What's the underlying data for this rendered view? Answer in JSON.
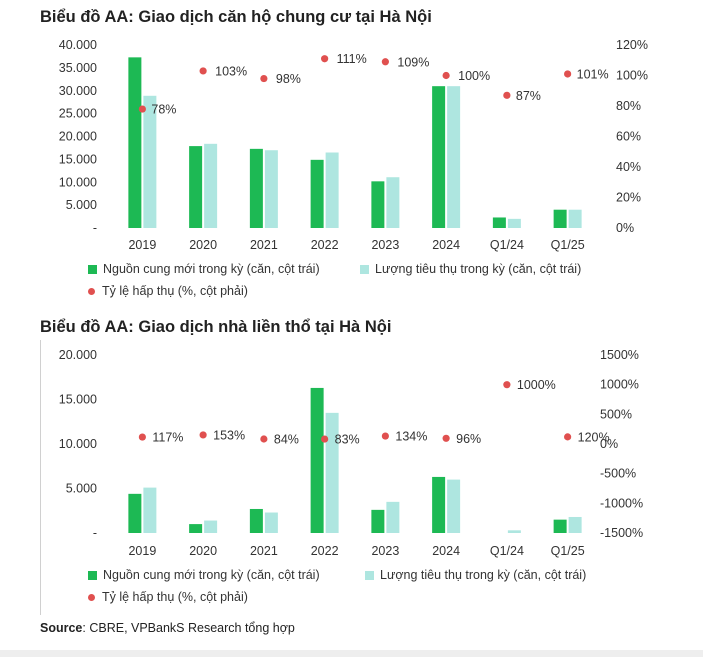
{
  "colors": {
    "supply": "#1db954",
    "sales": "#aee6e0",
    "rate": "#e0504f"
  },
  "legend": {
    "supply": "Nguồn cung mới trong kỳ (căn, cột trái)",
    "sales": "Lượng tiêu thụ trong kỳ (căn, cột trái)",
    "rate": "Tỷ lệ hấp thụ (%, cột phải)"
  },
  "source": {
    "label": "Source",
    "text": ": CBRE, VPBankS Research tổng hợp"
  },
  "chart_data": [
    {
      "type": "bar",
      "title": "Biểu đồ AA: Giao dịch căn hộ chung cư tại Hà Nội",
      "categories": [
        "2019",
        "2020",
        "2021",
        "2022",
        "2023",
        "2024",
        "Q1/24",
        "Q1/25"
      ],
      "series": [
        {
          "name": "Nguồn cung mới trong kỳ (căn, cột trái)",
          "values": [
            37300,
            17900,
            17300,
            14900,
            10200,
            31000,
            2300,
            4000
          ]
        },
        {
          "name": "Lượng tiêu thụ trong kỳ (căn, cột trái)",
          "values": [
            28900,
            18400,
            17000,
            16500,
            11100,
            31000,
            2000,
            4000
          ]
        },
        {
          "name": "Tỷ lệ hấp thụ (%, cột phải)",
          "values": [
            78,
            103,
            98,
            111,
            109,
            100,
            87,
            101
          ]
        }
      ],
      "rate_labels": [
        "78%",
        "103%",
        "98%",
        "111%",
        "109%",
        "100%",
        "87%",
        "101%"
      ],
      "ylim": [
        0,
        40000
      ],
      "ytick_labels": [
        "-",
        "5.000",
        "10.000",
        "15.000",
        "20.000",
        "25.000",
        "30.000",
        "35.000",
        "40.000"
      ],
      "y2lim": [
        0,
        120
      ],
      "y2tick_labels": [
        "0%",
        "20%",
        "40%",
        "60%",
        "80%",
        "100%",
        "120%"
      ]
    },
    {
      "type": "bar",
      "title": "Biểu đồ AA: Giao dịch nhà liền thổ tại Hà Nội",
      "categories": [
        "2019",
        "2020",
        "2021",
        "2022",
        "2023",
        "2024",
        "Q1/24",
        "Q1/25"
      ],
      "series": [
        {
          "name": "Nguồn cung mới trong kỳ (căn, cột trái)",
          "values": [
            4400,
            1000,
            2700,
            16300,
            2600,
            6300,
            0,
            1500
          ]
        },
        {
          "name": "Lượng tiêu thụ trong kỳ (căn, cột trái)",
          "values": [
            5100,
            1400,
            2300,
            13500,
            3500,
            6000,
            300,
            1800
          ]
        },
        {
          "name": "Tỷ lệ hấp thụ (%, cột phải)",
          "values": [
            117,
            153,
            84,
            83,
            134,
            96,
            1000,
            120
          ]
        }
      ],
      "rate_labels": [
        "117%",
        "153%",
        "84%",
        "83%",
        "134%",
        "96%",
        "1000%",
        "120%"
      ],
      "ylim": [
        0,
        20000
      ],
      "ytick_labels": [
        "-",
        "5.000",
        "10.000",
        "15.000",
        "20.000"
      ],
      "y2lim": [
        -1500,
        1500
      ],
      "y2tick_labels": [
        "-1500%",
        "-1000%",
        "-500%",
        "0%",
        "500%",
        "1000%",
        "1500%"
      ]
    }
  ]
}
